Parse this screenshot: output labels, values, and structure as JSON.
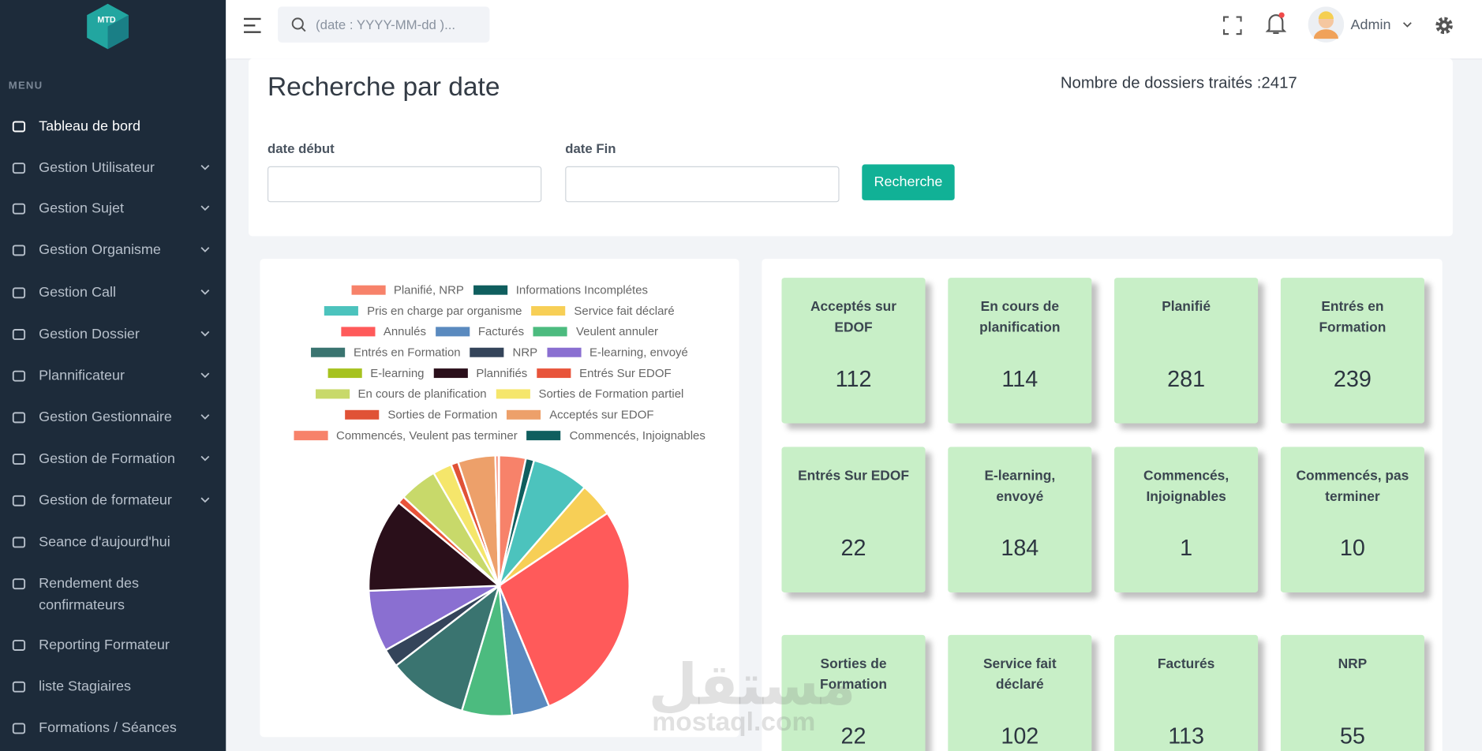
{
  "sidebar": {
    "logo": "MTD",
    "menu_label": "MENU",
    "items": [
      {
        "label": "Tableau de bord",
        "active": true
      },
      {
        "label": "Gestion Utilisateur",
        "submenu": true
      },
      {
        "label": "Gestion Sujet",
        "submenu": true
      },
      {
        "label": "Gestion Organisme",
        "submenu": true
      },
      {
        "label": "Gestion Call",
        "submenu": true
      },
      {
        "label": "Gestion Dossier",
        "submenu": true
      },
      {
        "label": "Plannificateur",
        "submenu": true
      },
      {
        "label": "Gestion Gestionnaire",
        "submenu": true
      },
      {
        "label": "Gestion de Formation",
        "submenu": true
      },
      {
        "label": "Gestion de formateur",
        "submenu": true
      },
      {
        "label": "Seance d'aujourd'hui"
      },
      {
        "label": "Rendement des confirmateurs"
      },
      {
        "label": "Reporting Formateur"
      },
      {
        "label": "liste Stagiaires"
      },
      {
        "label": "Formations / Séances"
      }
    ]
  },
  "header": {
    "search_placeholder": "(date : YYYY-MM-dd )...",
    "user": "Admin"
  },
  "search": {
    "title": "Recherche par date",
    "total": "Nombre de dossiers traités :2417",
    "start_label": "date début",
    "end_label": "date Fin",
    "button": "Recherche"
  },
  "chart_data": {
    "type": "pie",
    "categories": [
      "Planifié, NRP",
      "Informations Incomplétes",
      "Pris en charge par organisme",
      "Service fait déclaré",
      "Annulés",
      "Facturés",
      "Veulent annuler",
      "Entrés en Formation",
      "NRP",
      "E-learning, envoyé",
      "E-learning",
      "Plannifiés",
      "Entrés Sur EDOF",
      "En cours de planification",
      "Sorties de Formation partiel",
      "Sorties de Formation",
      "Acceptés sur EDOF",
      "Commencés, Veulent pas terminer",
      "Commencés, Injoignables"
    ],
    "values": [
      80,
      25,
      170,
      102,
      680,
      113,
      150,
      239,
      55,
      184,
      0,
      281,
      22,
      114,
      57,
      22,
      112,
      10,
      1
    ],
    "colors": [
      "#f7826a",
      "#0f5e5e",
      "#4cc3bd",
      "#f7cf56",
      "#ff5a5a",
      "#5a8abf",
      "#4cbb7f",
      "#3a7470",
      "#34445a",
      "#8a6fd1",
      "#a6c21f",
      "#2a0f1a",
      "#e8543a",
      "#c8d96a",
      "#f5e66b",
      "#e05236",
      "#eda06a",
      "#f7826a",
      "#0f5e5e"
    ]
  },
  "cards": [
    {
      "label": "Acceptés sur EDOF",
      "value": 112
    },
    {
      "label": "En cours de planification",
      "value": 114
    },
    {
      "label": "Planifié",
      "value": 281
    },
    {
      "label": "Entrés en Formation",
      "value": 239
    },
    {
      "label": "Entrés Sur EDOF",
      "value": 22
    },
    {
      "label": "E-learning, envoyé",
      "value": 184
    },
    {
      "label": "Commencés, Injoignables",
      "value": 1
    },
    {
      "label": "Commencés, pas terminer",
      "value": 10
    },
    {
      "label": "Sorties de Formation",
      "value": 22
    },
    {
      "label": "Service fait déclaré",
      "value": 102
    },
    {
      "label": "Facturés",
      "value": 113
    },
    {
      "label": "NRP",
      "value": 55
    }
  ],
  "watermark": {
    "arabic": "مستقل",
    "latin": "mostaql.com"
  }
}
